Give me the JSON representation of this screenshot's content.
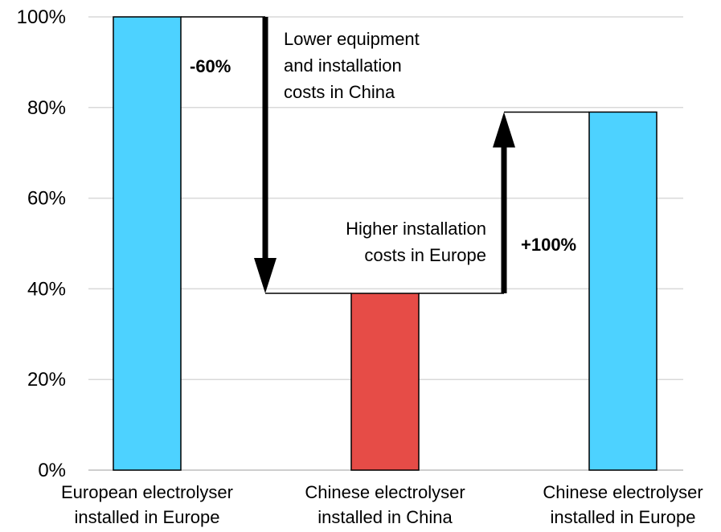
{
  "chart_data": {
    "type": "bar",
    "title": "",
    "xlabel": "",
    "ylabel": "",
    "ylim": [
      0,
      100
    ],
    "yticks": [
      0,
      20,
      40,
      60,
      80,
      100
    ],
    "ytick_labels": [
      "0%",
      "20%",
      "40%",
      "60%",
      "80%",
      "100%"
    ],
    "grid": true,
    "categories": [
      [
        "European electrolyser",
        "installed in Europe"
      ],
      [
        "Chinese electrolyser",
        "installed in China"
      ],
      [
        "Chinese electrolyser",
        "installed in Europe"
      ]
    ],
    "values": [
      100,
      39,
      79
    ],
    "bar_colors": [
      "#4dd2ff",
      "#e64c47",
      "#4dd2ff"
    ],
    "annotations": [
      {
        "from_bar": 0,
        "to_bar": 1,
        "direction": "down",
        "change_label": "-60%",
        "text_lines": [
          "Lower equipment",
          "and installation",
          "costs in China"
        ]
      },
      {
        "from_bar": 1,
        "to_bar": 2,
        "direction": "up",
        "change_label": "+100%",
        "text_lines": [
          "Higher installation",
          "costs in Europe"
        ]
      }
    ]
  }
}
